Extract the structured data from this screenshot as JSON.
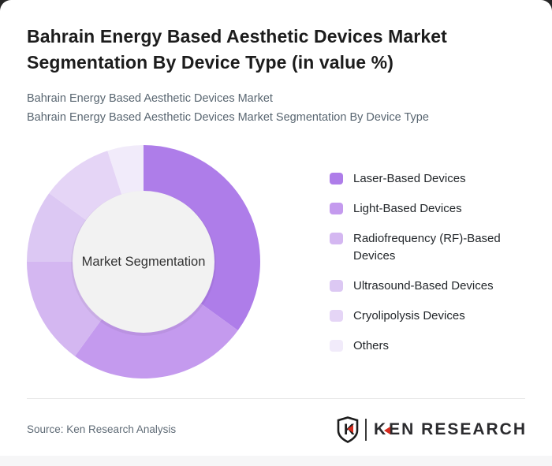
{
  "header": {
    "title": "Bahrain Energy Based Aesthetic Devices Market Segmentation By Device Type (in value %)",
    "subtitle_line1": "Bahrain Energy Based Aesthetic Devices Market",
    "subtitle_line2": "Bahrain Energy Based Aesthetic Devices Market Segmentation By Device Type"
  },
  "chart_data": {
    "type": "pie",
    "variant": "donut",
    "title": "Bahrain Energy Based Aesthetic Devices Market Segmentation By Device Type (in value %)",
    "center_label": "Market Segmentation",
    "categories": [
      "Laser-Based Devices",
      "Light-Based Devices",
      "Radiofrequency (RF)-Based Devices",
      "Ultrasound-Based Devices",
      "Cryolipolysis Devices",
      "Others"
    ],
    "values": [
      35,
      25,
      15,
      10,
      10,
      5
    ],
    "unit": "%",
    "colors": [
      "#ae7de9",
      "#c49aee",
      "#d4b7f1",
      "#dcc8f3",
      "#e5d5f6",
      "#f1ebfa"
    ],
    "start_angle_deg": 0,
    "direction": "clockwise",
    "inner_radius_ratio": 0.6,
    "inner_circle_color": "#f2f2f2",
    "legend_position": "right"
  },
  "footer": {
    "source": "Source: Ken Research Analysis",
    "brand_k": "K",
    "brand_rest": "EN RESEARCH",
    "shield_letter": "K"
  },
  "theme": {
    "accent": "#ae7de9",
    "card_background": "#ffffff",
    "page_background": "#262626",
    "title_color": "#1c1c1c",
    "subtitle_color": "#596671",
    "brand_red": "#d52b1e",
    "brand_dark": "#2b2b2e"
  }
}
